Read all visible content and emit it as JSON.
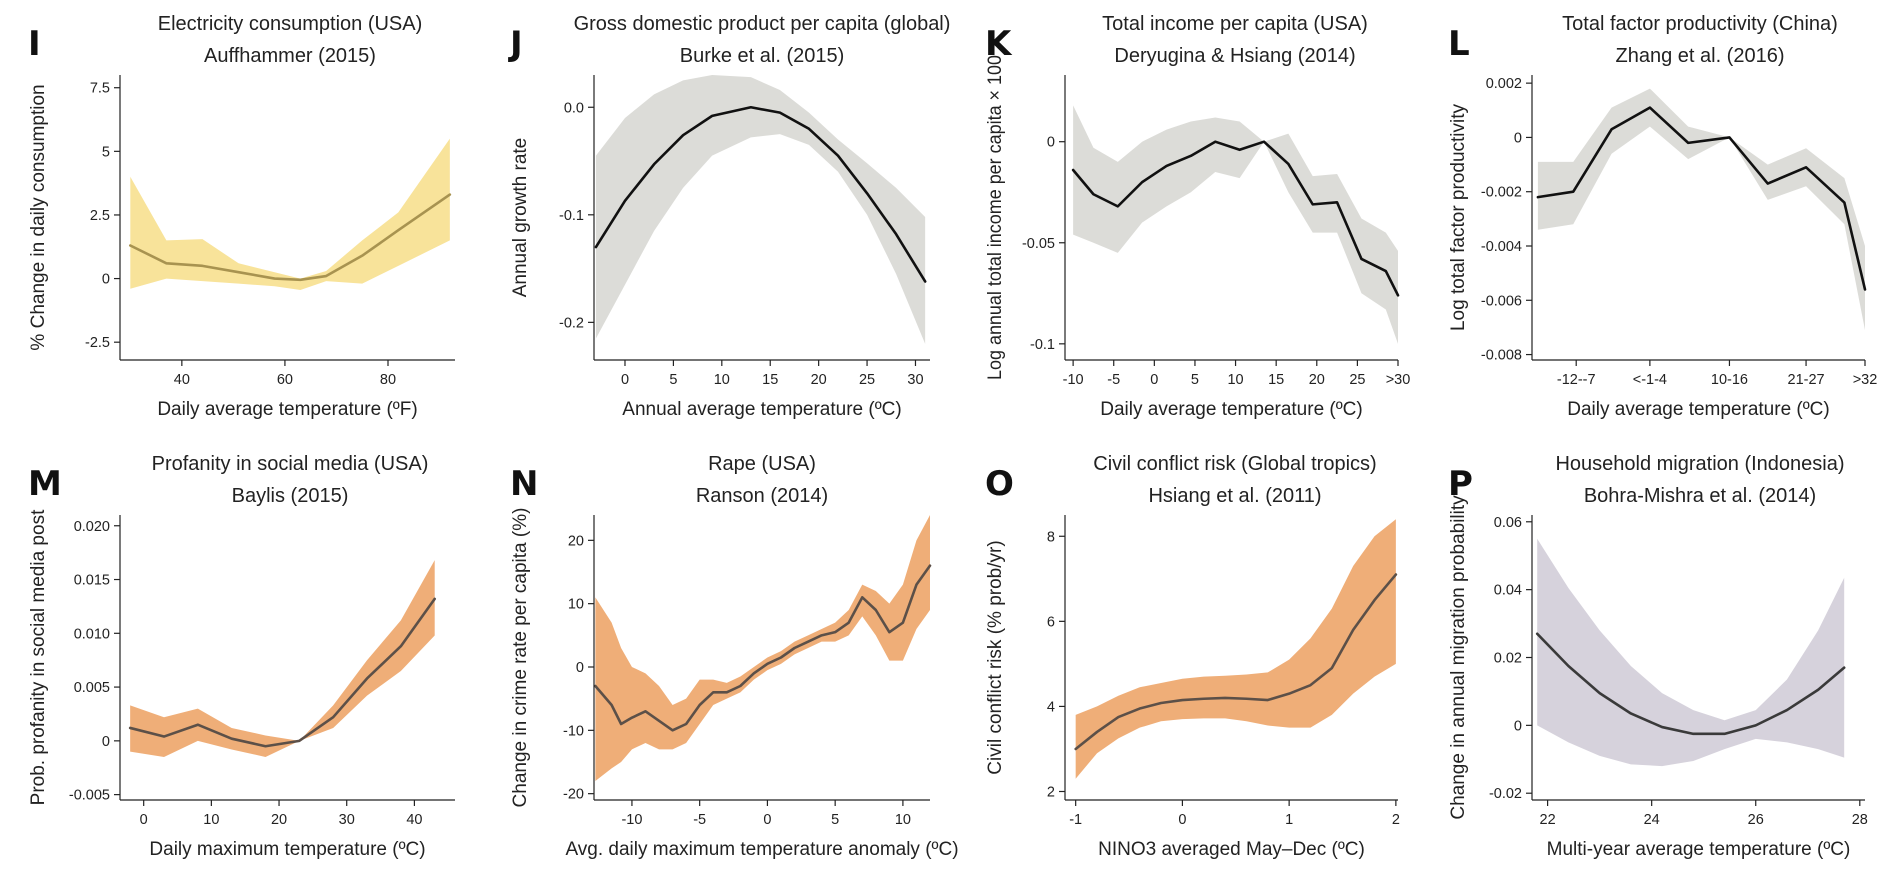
{
  "chart_data": [
    {
      "letter": "I",
      "type": "line",
      "title": "Electricity consumption (USA)",
      "subtitle": "Auffhammer (2015)",
      "xlabel": "Daily average temperature (ºF)",
      "ylabel": "% Change in daily consumption",
      "xlim": [
        28,
        93
      ],
      "ylim": [
        -3.2,
        8.0
      ],
      "xticks": [
        {
          "v": 40,
          "label": "40"
        },
        {
          "v": 60,
          "label": "60"
        },
        {
          "v": 80,
          "label": "80"
        }
      ],
      "yticks": [
        {
          "v": -2.5,
          "label": "-2.5"
        },
        {
          "v": 0,
          "label": "0"
        },
        {
          "v": 2.5,
          "label": "2.5"
        },
        {
          "v": 5,
          "label": "5"
        },
        {
          "v": 7.5,
          "label": "7.5"
        }
      ],
      "line_color": "#a89350",
      "band_color": "#f8e39a",
      "x": [
        30,
        37,
        44,
        51,
        58,
        63,
        68,
        75,
        82,
        92
      ],
      "y": [
        1.3,
        0.6,
        0.5,
        0.25,
        0.0,
        -0.05,
        0.1,
        0.9,
        1.9,
        3.3
      ],
      "lower": [
        -0.4,
        0.0,
        -0.1,
        -0.2,
        -0.3,
        -0.45,
        -0.1,
        -0.2,
        0.5,
        1.5
      ],
      "upper": [
        4.0,
        1.5,
        1.55,
        0.6,
        0.25,
        0.0,
        0.3,
        1.5,
        2.6,
        5.5
      ]
    },
    {
      "letter": "J",
      "type": "line",
      "title": "Gross domestic product per capita (global)",
      "subtitle": "Burke et al. (2015)",
      "xlabel": "Annual average temperature (ºC)",
      "ylabel": "Annual growth rate",
      "xlim": [
        -3.2,
        31.5
      ],
      "ylim": [
        -0.235,
        0.03
      ],
      "xticks": [
        {
          "v": 0,
          "label": "0"
        },
        {
          "v": 5,
          "label": "5"
        },
        {
          "v": 10,
          "label": "10"
        },
        {
          "v": 15,
          "label": "15"
        },
        {
          "v": 20,
          "label": "20"
        },
        {
          "v": 25,
          "label": "25"
        },
        {
          "v": 30,
          "label": "30"
        }
      ],
      "yticks": [
        {
          "v": -0.2,
          "label": "-0.2"
        },
        {
          "v": -0.1,
          "label": "-0.1"
        },
        {
          "v": 0,
          "label": "0.0"
        }
      ],
      "line_color": "#111111",
      "band_color": "#dcdcd8",
      "x": [
        -3,
        0,
        3,
        6,
        9,
        13,
        16,
        19,
        22,
        25,
        28,
        31
      ],
      "y": [
        -0.13,
        -0.087,
        -0.053,
        -0.026,
        -0.008,
        0.0,
        -0.005,
        -0.02,
        -0.045,
        -0.08,
        -0.118,
        -0.162
      ],
      "lower": [
        -0.215,
        -0.165,
        -0.115,
        -0.075,
        -0.045,
        -0.028,
        -0.025,
        -0.035,
        -0.06,
        -0.1,
        -0.155,
        -0.22
      ],
      "upper": [
        -0.045,
        -0.01,
        0.012,
        0.025,
        0.03,
        0.028,
        0.016,
        -0.005,
        -0.03,
        -0.052,
        -0.075,
        -0.102
      ]
    },
    {
      "letter": "K",
      "type": "line",
      "title": "Total income per capita (USA)",
      "subtitle": "Deryugina & Hsiang (2014)",
      "xlabel": "Daily average temperature (ºC)",
      "ylabel": "Log annual total income per capita × 100",
      "xlim": [
        -11,
        30
      ],
      "ylim": [
        -0.108,
        0.033
      ],
      "xticks": [
        {
          "v": -10,
          "label": "-10"
        },
        {
          "v": -5,
          "label": "-5"
        },
        {
          "v": 0,
          "label": "0"
        },
        {
          "v": 5,
          "label": "5"
        },
        {
          "v": 10,
          "label": "10"
        },
        {
          "v": 15,
          "label": "15"
        },
        {
          "v": 20,
          "label": "20"
        },
        {
          "v": 25,
          "label": "25"
        },
        {
          "v": 30,
          "label": ">30"
        }
      ],
      "yticks": [
        {
          "v": -0.1,
          "label": "-0.1"
        },
        {
          "v": -0.05,
          "label": "-0.05"
        },
        {
          "v": 0,
          "label": "0"
        }
      ],
      "line_color": "#111111",
      "band_color": "#dcdcd8",
      "x": [
        -10,
        -7.5,
        -4.5,
        -1.5,
        1.5,
        4.5,
        7.5,
        10.5,
        13.5,
        16.5,
        19.5,
        22.5,
        25.5,
        28.5,
        30
      ],
      "y": [
        -0.014,
        -0.026,
        -0.032,
        -0.02,
        -0.012,
        -0.007,
        0.0,
        -0.004,
        0.0,
        -0.011,
        -0.031,
        -0.03,
        -0.058,
        -0.064,
        -0.076
      ],
      "lower": [
        -0.046,
        -0.05,
        -0.055,
        -0.04,
        -0.032,
        -0.025,
        -0.015,
        -0.018,
        0.0,
        -0.025,
        -0.045,
        -0.045,
        -0.075,
        -0.083,
        -0.1
      ],
      "upper": [
        0.018,
        -0.003,
        -0.01,
        0.0,
        0.006,
        0.01,
        0.012,
        0.01,
        0.0,
        0.004,
        -0.017,
        -0.016,
        -0.038,
        -0.045,
        -0.054
      ]
    },
    {
      "letter": "L",
      "type": "line",
      "title": "Total factor productivity (China)",
      "subtitle": "Zhang et al. (2016)",
      "xlabel": "Daily average temperature (ºC)",
      "ylabel": "Log total factor productivity",
      "xlim": [
        0,
        11.3
      ],
      "ylim": [
        -0.0082,
        0.0023
      ],
      "xticks": [
        {
          "v": 1.5,
          "label": "-12--7"
        },
        {
          "v": 4,
          "label": "<-1-4"
        },
        {
          "v": 6.7,
          "label": "10-16"
        },
        {
          "v": 9.3,
          "label": "21-27"
        },
        {
          "v": 11.3,
          "label": ">32"
        }
      ],
      "yticks": [
        {
          "v": -0.008,
          "label": "-0.008"
        },
        {
          "v": -0.006,
          "label": "-0.006"
        },
        {
          "v": -0.004,
          "label": "-0.004"
        },
        {
          "v": -0.002,
          "label": "-0.002"
        },
        {
          "v": 0,
          "label": "0"
        },
        {
          "v": 0.002,
          "label": "0.002"
        }
      ],
      "line_color": "#111111",
      "band_color": "#dcdcd8",
      "x": [
        0.2,
        1.4,
        2.7,
        4,
        5.3,
        6.7,
        8,
        9.3,
        10.6,
        11.3
      ],
      "y": [
        -0.0022,
        -0.002,
        0.0003,
        0.0011,
        -0.0002,
        0.0,
        -0.0017,
        -0.0011,
        -0.0024,
        -0.0056
      ],
      "lower": [
        -0.0034,
        -0.0032,
        -0.0006,
        0.0004,
        -0.0008,
        0.0,
        -0.0023,
        -0.0018,
        -0.0032,
        -0.0071
      ],
      "upper": [
        -0.0009,
        -0.0009,
        0.0011,
        0.0018,
        0.0004,
        0.0,
        -0.001,
        -0.0004,
        -0.0015,
        -0.004
      ]
    },
    {
      "letter": "M",
      "type": "line",
      "title": "Profanity in social media (USA)",
      "subtitle": "Baylis (2015)",
      "xlabel": "Daily maximum temperature (ºC)",
      "ylabel": "Prob. profanity in social media post",
      "xlim": [
        -3.5,
        46
      ],
      "ylim": [
        -0.0055,
        0.021
      ],
      "xticks": [
        {
          "v": 0,
          "label": "0"
        },
        {
          "v": 10,
          "label": "10"
        },
        {
          "v": 20,
          "label": "20"
        },
        {
          "v": 30,
          "label": "30"
        },
        {
          "v": 40,
          "label": "40"
        }
      ],
      "yticks": [
        {
          "v": -0.005,
          "label": "-0.005"
        },
        {
          "v": 0,
          "label": "0"
        },
        {
          "v": 0.005,
          "label": "0.005"
        },
        {
          "v": 0.01,
          "label": "0.010"
        },
        {
          "v": 0.015,
          "label": "0.015"
        },
        {
          "v": 0.02,
          "label": "0.020"
        }
      ],
      "line_color": "#5c5048",
      "band_color": "#efae78",
      "x": [
        -2,
        3,
        8,
        13,
        18,
        23,
        28,
        33,
        38,
        43
      ],
      "y": [
        0.0012,
        0.0004,
        0.0015,
        0.0002,
        -0.0005,
        0.0,
        0.0022,
        0.0058,
        0.0088,
        0.0132
      ],
      "lower": [
        -0.001,
        -0.0015,
        0.0,
        -0.0008,
        -0.0015,
        0.0,
        0.0012,
        0.0042,
        0.0065,
        0.0098
      ],
      "upper": [
        0.0033,
        0.0022,
        0.003,
        0.0012,
        0.0005,
        0.0,
        0.0033,
        0.0075,
        0.0112,
        0.0168
      ]
    },
    {
      "letter": "N",
      "type": "line",
      "title": "Rape (USA)",
      "subtitle": "Ranson (2014)",
      "xlabel": "Avg. daily maximum temperature anomaly (ºC)",
      "ylabel": "Change in crime rate per capita (%)",
      "xlim": [
        -12.8,
        12
      ],
      "ylim": [
        -21,
        24
      ],
      "xticks": [
        {
          "v": -10,
          "label": "-10"
        },
        {
          "v": -5,
          "label": "-5"
        },
        {
          "v": 0,
          "label": "0"
        },
        {
          "v": 5,
          "label": "5"
        },
        {
          "v": 10,
          "label": "10"
        }
      ],
      "yticks": [
        {
          "v": -20,
          "label": "-20"
        },
        {
          "v": -10,
          "label": "-10"
        },
        {
          "v": 0,
          "label": "0"
        },
        {
          "v": 10,
          "label": "10"
        },
        {
          "v": 20,
          "label": "20"
        }
      ],
      "line_color": "#5c5048",
      "band_color": "#efae78",
      "x": [
        -12.7,
        -11.5,
        -10.8,
        -10,
        -9,
        -8,
        -7,
        -6,
        -5,
        -4,
        -3,
        -2,
        -1,
        0,
        1,
        2,
        3,
        4,
        5,
        6,
        7,
        8,
        9,
        10,
        11,
        12
      ],
      "y": [
        -3,
        -6,
        -9,
        -8,
        -7,
        -8.5,
        -10,
        -9,
        -6,
        -4,
        -4,
        -3,
        -1,
        0.5,
        1.5,
        3,
        4,
        5,
        5.5,
        7,
        11,
        9,
        5.5,
        7,
        13,
        16
      ],
      "lower": [
        -18,
        -16,
        -15,
        -13,
        -12,
        -13,
        -13,
        -12,
        -9,
        -6,
        -5,
        -4,
        -2,
        -0.5,
        0.5,
        2,
        3,
        4,
        4,
        5,
        8,
        5,
        1,
        1,
        6,
        9
      ],
      "upper": [
        11,
        7,
        3,
        0,
        -1,
        -3,
        -6,
        -5,
        -2,
        -2,
        -2.5,
        -1.5,
        0,
        1.5,
        2.5,
        4,
        5,
        6,
        7,
        9,
        13,
        12,
        10,
        13,
        20,
        24
      ]
    },
    {
      "letter": "O",
      "type": "line",
      "title": "Civil conflict risk (Global tropics)",
      "subtitle": "Hsiang et al. (2011)",
      "xlabel": "NINO3 averaged May–Dec (ºC)",
      "ylabel": "Civil conflict risk  (% prob/yr)",
      "xlim": [
        -1.1,
        2.02
      ],
      "ylim": [
        1.8,
        8.5
      ],
      "xticks": [
        {
          "v": -1,
          "label": "-1"
        },
        {
          "v": 0,
          "label": "0"
        },
        {
          "v": 1,
          "label": "1"
        },
        {
          "v": 2,
          "label": "2"
        }
      ],
      "yticks": [
        {
          "v": 2,
          "label": "2"
        },
        {
          "v": 4,
          "label": "4"
        },
        {
          "v": 6,
          "label": "6"
        },
        {
          "v": 8,
          "label": "8"
        }
      ],
      "line_color": "#5c5048",
      "band_color": "#efae78",
      "x": [
        -1,
        -0.8,
        -0.6,
        -0.4,
        -0.2,
        0,
        0.2,
        0.4,
        0.6,
        0.8,
        1,
        1.2,
        1.4,
        1.6,
        1.8,
        2
      ],
      "y": [
        3.0,
        3.4,
        3.75,
        3.95,
        4.08,
        4.15,
        4.18,
        4.2,
        4.18,
        4.15,
        4.3,
        4.5,
        4.9,
        5.8,
        6.5,
        7.1
      ],
      "lower": [
        2.3,
        2.9,
        3.25,
        3.5,
        3.65,
        3.7,
        3.72,
        3.72,
        3.65,
        3.55,
        3.5,
        3.5,
        3.8,
        4.3,
        4.7,
        5.0
      ],
      "upper": [
        3.8,
        4.0,
        4.25,
        4.45,
        4.55,
        4.65,
        4.7,
        4.72,
        4.75,
        4.8,
        5.1,
        5.6,
        6.3,
        7.3,
        8.0,
        8.4
      ]
    },
    {
      "letter": "P",
      "type": "line",
      "title": "Household migration (Indonesia)",
      "subtitle": "Bohra-Mishra et al. (2014)",
      "xlabel": "Multi-year average temperature (ºC)",
      "ylabel": "Change in annual migration probability",
      "xlim": [
        21.7,
        28.1
      ],
      "ylim": [
        -0.022,
        0.062
      ],
      "xticks": [
        {
          "v": 22,
          "label": "22"
        },
        {
          "v": 24,
          "label": "24"
        },
        {
          "v": 26,
          "label": "26"
        },
        {
          "v": 28,
          "label": "28"
        }
      ],
      "yticks": [
        {
          "v": -0.02,
          "label": "-0.02"
        },
        {
          "v": 0,
          "label": "0"
        },
        {
          "v": 0.02,
          "label": "0.02"
        },
        {
          "v": 0.04,
          "label": "0.04"
        },
        {
          "v": 0.06,
          "label": "0.06"
        }
      ],
      "line_color": "#3a3a3a",
      "band_color": "#d6d2dc",
      "x": [
        21.8,
        22.4,
        23,
        23.6,
        24.2,
        24.8,
        25.4,
        26,
        26.6,
        27.2,
        27.7
      ],
      "y": [
        0.027,
        0.0175,
        0.0095,
        0.0035,
        -0.0005,
        -0.0025,
        -0.0025,
        0.0,
        0.0045,
        0.0105,
        0.017
      ],
      "lower": [
        0.0,
        -0.005,
        -0.009,
        -0.0115,
        -0.012,
        -0.0105,
        -0.007,
        -0.004,
        -0.005,
        -0.007,
        -0.0095
      ],
      "upper": [
        0.055,
        0.0405,
        0.028,
        0.0175,
        0.0095,
        0.0045,
        0.0015,
        0.0045,
        0.0135,
        0.028,
        0.0435
      ]
    }
  ]
}
